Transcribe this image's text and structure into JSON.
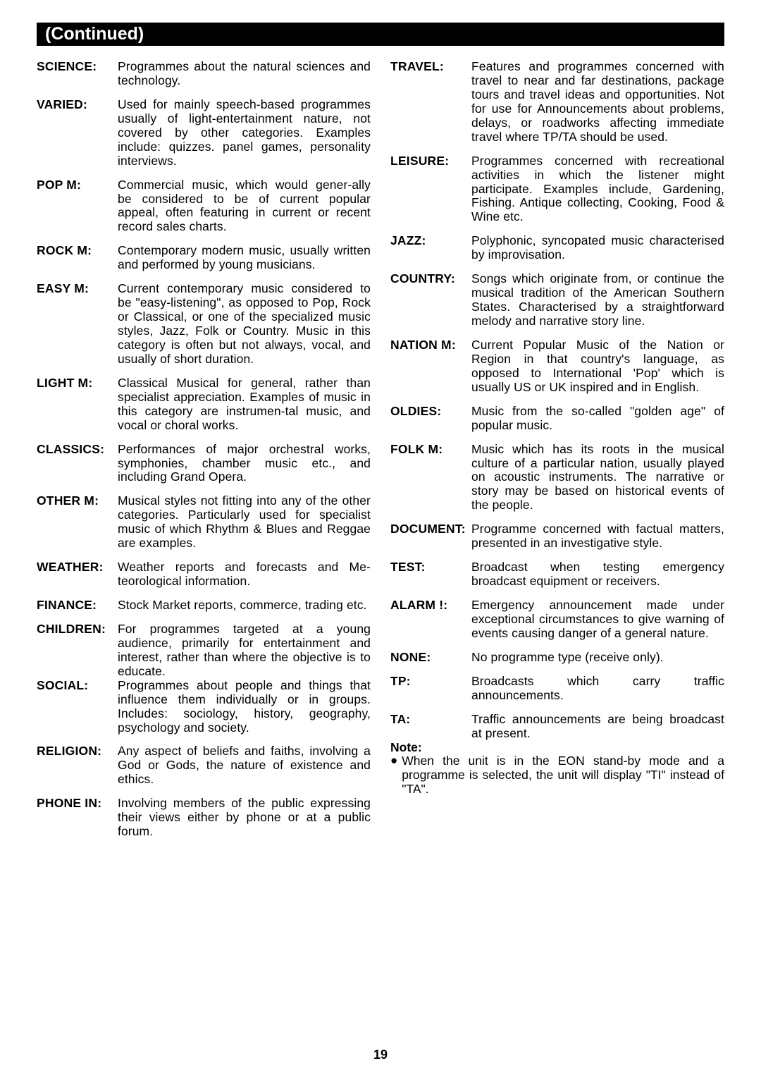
{
  "header": "(Continued)",
  "page_number": "19",
  "left_column": [
    {
      "term": "SCIENCE:",
      "desc": "Programmes about the natural sciences and technology."
    },
    {
      "term": "VARIED:",
      "desc": "Used for mainly speech-based programmes usually of light-entertainment nature, not covered by other categories. Examples include: quizzes. panel games, personality interviews."
    },
    {
      "term": "POP M:",
      "desc": "Commercial music, which would gener-ally be considered to be of current popular appeal, often featuring in current or recent record sales charts."
    },
    {
      "term": "ROCK M:",
      "desc": "Contemporary modern music, usually written and performed by young musicians."
    },
    {
      "term": "EASY M:",
      "desc": "Current contemporary music considered to be \"easy-listening\", as opposed to Pop, Rock or Classical, or one of the specialized music styles, Jazz, Folk or Country. Music in this category is often but not always, vocal, and usually of short duration."
    },
    {
      "term": "LIGHT M:",
      "desc": "Classical Musical for general, rather than specialist appreciation. Examples of music in this category are instrumen-tal music, and vocal or choral works."
    },
    {
      "term": "CLASSICS:",
      "desc": "Performances of major orchestral works, symphonies, chamber music etc., and including Grand Opera."
    },
    {
      "term": "OTHER M:",
      "desc": "Musical styles not fitting into any of the other categories. Particularly used for specialist music of which Rhythm & Blues and Reggae are examples."
    },
    {
      "term": "WEATHER:",
      "desc": "Weather reports and forecasts and Me-teorological information."
    },
    {
      "term": "FINANCE:",
      "desc": "Stock Market reports, commerce, trading etc."
    },
    {
      "term": "CHILDREN:",
      "desc": "For programmes targeted at a young audience, primarily for entertainment and interest, rather than where the objective is to educate.",
      "no_margin": true
    },
    {
      "term": "SOCIAL:",
      "desc": "Programmes about people and things that influence them individually or in groups. Includes: sociology, history, geography, psychology and society."
    },
    {
      "term": "RELIGION:",
      "desc": "Any aspect of beliefs and faiths, involving a God or Gods, the nature of existence and ethics."
    },
    {
      "term": "PHONE IN:",
      "desc": "Involving members of the public expressing their views either by phone or at a public forum."
    }
  ],
  "right_column": [
    {
      "term": "TRAVEL:",
      "desc": "Features and programmes concerned with travel to near and far destinations, package tours and travel ideas and opportunities. Not for use for Announcements about problems, delays, or roadworks affecting immediate travel where TP/TA should be used."
    },
    {
      "term": "LEISURE:",
      "desc": "Programmes concerned with recreational activities in which the listener might participate.\nExamples include, Gardening, Fishing. Antique collecting, Cooking, Food & Wine etc."
    },
    {
      "term": "JAZZ:",
      "desc": "Polyphonic, syncopated music characterised by improvisation."
    },
    {
      "term": "COUNTRY:",
      "desc": "Songs which originate from, or continue the musical tradition of the American Southern States.\nCharacterised by a straightforward melody and narrative story line."
    },
    {
      "term": "NATION M:",
      "desc": "Current Popular Music of the Nation or Region in that country's language, as opposed to International 'Pop' which is usually US or UK inspired and in English."
    },
    {
      "term": "OLDIES:",
      "desc": "Music from the so-called \"golden age\" of popular music."
    },
    {
      "term": "FOLK M:",
      "desc": "Music which has its roots in the musical culture of a particular nation, usually played on acoustic instruments. The narrative or story may be based on historical events of the people."
    },
    {
      "term": "DOCUMENT:",
      "desc": "Programme concerned with factual matters, presented in an investigative style."
    },
    {
      "term": "TEST:",
      "desc": "Broadcast when testing emergency broadcast equipment or receivers."
    },
    {
      "term": "ALARM !:",
      "desc": "Emergency announcement made under exceptional circumstances to give warning of events causing danger of a general nature."
    },
    {
      "term": "NONE:",
      "desc": "No programme type (receive only)."
    },
    {
      "term": "TP:",
      "desc": "Broadcasts which carry traffic announcements."
    },
    {
      "term": "TA:",
      "desc": "Traffic announcements are being broadcast at present.",
      "no_margin": true
    }
  ],
  "note": {
    "label": "Note:",
    "items": [
      "When the unit is in the EON stand-by mode and a programme is selected, the unit will display \"TI\" instead of \"TA\"."
    ]
  }
}
